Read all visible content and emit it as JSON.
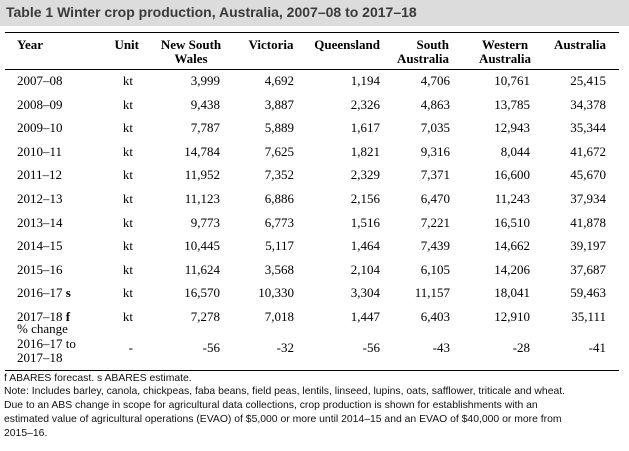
{
  "title": "Table 1 Winter crop production, Australia, 2007–08 to 2017–18",
  "columns": {
    "year": "Year",
    "unit": "Unit",
    "nsw_line1": "New South",
    "nsw_line2": "Wales",
    "vic": "Victoria",
    "qld": "Queensland",
    "sa_line1": "South",
    "sa_line2": "Australia",
    "wa_line1": "Western",
    "wa_line2": "Australia",
    "aus": "Australia"
  },
  "rows": [
    {
      "year": "2007–08",
      "unit": "kt",
      "nsw": "3,999",
      "vic": "4,692",
      "qld": "1,194",
      "sa": "4,706",
      "wa": "10,761",
      "aus": "25,415"
    },
    {
      "year": "2008–09",
      "unit": "kt",
      "nsw": "9,438",
      "vic": "3,887",
      "qld": "2,326",
      "sa": "4,863",
      "wa": "13,785",
      "aus": "34,378"
    },
    {
      "year": "2009–10",
      "unit": "kt",
      "nsw": "7,787",
      "vic": "5,889",
      "qld": "1,617",
      "sa": "7,035",
      "wa": "12,943",
      "aus": "35,344"
    },
    {
      "year": "2010–11",
      "unit": "kt",
      "nsw": "14,784",
      "vic": "7,625",
      "qld": "1,821",
      "sa": "9,316",
      "wa": "8,044",
      "aus": "41,672"
    },
    {
      "year": "2011–12",
      "unit": "kt",
      "nsw": "11,952",
      "vic": "7,352",
      "qld": "2,329",
      "sa": "7,371",
      "wa": "16,600",
      "aus": "45,670"
    },
    {
      "year": "2012–13",
      "unit": "kt",
      "nsw": "11,123",
      "vic": "6,886",
      "qld": "2,156",
      "sa": "6,470",
      "wa": "11,243",
      "aus": "37,934"
    },
    {
      "year": "2013–14",
      "unit": "kt",
      "nsw": "9,773",
      "vic": "6,773",
      "qld": "1,516",
      "sa": "7,221",
      "wa": "16,510",
      "aus": "41,878"
    },
    {
      "year": "2014–15",
      "unit": "kt",
      "nsw": "10,445",
      "vic": "5,117",
      "qld": "1,464",
      "sa": "7,439",
      "wa": "14,662",
      "aus": "39,197"
    },
    {
      "year": "2015–16",
      "unit": "kt",
      "nsw": "11,624",
      "vic": "3,568",
      "qld": "2,104",
      "sa": "6,105",
      "wa": "14,206",
      "aus": "37,687"
    },
    {
      "year": "2016–17 s",
      "unit": "kt",
      "nsw": "16,570",
      "vic": "10,330",
      "qld": "3,304",
      "sa": "11,157",
      "wa": "18,041",
      "aus": "59,463"
    },
    {
      "year": "2017–18 f",
      "unit": "kt",
      "nsw": "7,278",
      "vic": "7,018",
      "qld": "1,447",
      "sa": "6,403",
      "wa": "12,910",
      "aus": "35,111"
    }
  ],
  "pct_change": {
    "label_line1": "% change",
    "label_line2": "2016–17 to",
    "label_line3": "2017–18",
    "unit": "-",
    "nsw": "-56",
    "vic": "-32",
    "qld": "-56",
    "sa": "-43",
    "wa": "-28",
    "aus": "-41"
  },
  "footnotes": {
    "line1": "f ABARES forecast. s ABARES estimate.",
    "line2": "Note: Includes barley, canola, chickpeas, faba beans, field peas, lentils, linseed, lupins, oats, safflower, triticale and wheat.",
    "line3": "Due to an ABS change in scope for agricultural data collections, crop production is shown for establishments with an",
    "line4": "estimated value of agricultural operations (EVAO) of $5,000 or more until 2014–15 and an EVAO of $40,000 or more from",
    "line5": "2015–16."
  }
}
